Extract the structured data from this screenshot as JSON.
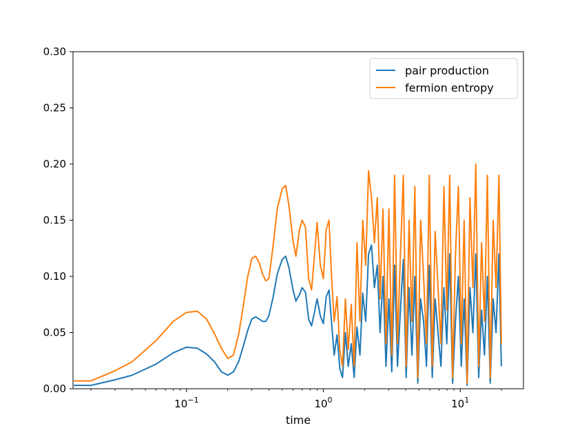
{
  "chart_data": {
    "type": "line",
    "xscale": "log",
    "xlabel": "time",
    "ylabel": "",
    "xlim": [
      0.0148,
      29
    ],
    "ylim": [
      0,
      0.3
    ],
    "x_ticks": [
      {
        "value": 0.1,
        "base": "10",
        "exp": "−1"
      },
      {
        "value": 1,
        "base": "10",
        "exp": "0"
      },
      {
        "value": 10,
        "base": "10",
        "exp": "1"
      }
    ],
    "y_ticks": [
      "0.00",
      "0.05",
      "0.10",
      "0.15",
      "0.20",
      "0.25",
      "0.30"
    ],
    "grid": false,
    "legend": "top-right",
    "series": [
      {
        "name": "pair production",
        "color": "#1f77b4",
        "x": [
          0.015,
          0.02,
          0.03,
          0.04,
          0.06,
          0.08,
          0.1,
          0.12,
          0.14,
          0.16,
          0.18,
          0.2,
          0.22,
          0.24,
          0.26,
          0.28,
          0.3,
          0.32,
          0.34,
          0.36,
          0.38,
          0.4,
          0.43,
          0.46,
          0.5,
          0.53,
          0.56,
          0.6,
          0.63,
          0.67,
          0.7,
          0.74,
          0.78,
          0.82,
          0.86,
          0.9,
          0.95,
          1.0,
          1.05,
          1.1,
          1.15,
          1.2,
          1.26,
          1.32,
          1.38,
          1.45,
          1.52,
          1.6,
          1.68,
          1.76,
          1.85,
          1.94,
          2.04,
          2.14,
          2.25,
          2.36,
          2.48,
          2.6,
          2.73,
          2.87,
          3.01,
          3.16,
          3.32,
          3.48,
          3.66,
          3.84,
          4.03,
          4.23,
          4.44,
          4.66,
          4.9,
          5.14,
          5.4,
          5.67,
          5.95,
          6.25,
          6.56,
          6.89,
          7.23,
          7.6,
          7.98,
          8.38,
          8.8,
          9.24,
          9.7,
          10.18,
          10.69,
          11.23,
          11.79,
          12.38,
          13.0,
          13.65,
          14.33,
          15.05,
          15.8,
          16.59,
          17.42,
          18.29,
          19.2,
          20.0
        ],
        "y": [
          0.003,
          0.003,
          0.008,
          0.012,
          0.022,
          0.032,
          0.037,
          0.036,
          0.031,
          0.024,
          0.015,
          0.012,
          0.015,
          0.024,
          0.038,
          0.052,
          0.062,
          0.064,
          0.062,
          0.06,
          0.06,
          0.065,
          0.082,
          0.102,
          0.115,
          0.118,
          0.108,
          0.088,
          0.078,
          0.084,
          0.09,
          0.086,
          0.062,
          0.056,
          0.068,
          0.08,
          0.065,
          0.058,
          0.082,
          0.088,
          0.058,
          0.03,
          0.048,
          0.018,
          0.01,
          0.05,
          0.02,
          0.04,
          0.01,
          0.055,
          0.03,
          0.085,
          0.06,
          0.12,
          0.128,
          0.09,
          0.11,
          0.05,
          0.1,
          0.02,
          0.08,
          0.015,
          0.11,
          0.02,
          0.07,
          0.115,
          0.01,
          0.09,
          0.03,
          0.1,
          0.005,
          0.08,
          0.06,
          0.02,
          0.11,
          0.01,
          0.08,
          0.05,
          0.02,
          0.09,
          0.04,
          0.12,
          0.005,
          0.06,
          0.1,
          0.02,
          0.08,
          0.003,
          0.09,
          0.05,
          0.12,
          0.01,
          0.07,
          0.03,
          0.1,
          0.005,
          0.08,
          0.05,
          0.12,
          0.02
        ]
      },
      {
        "name": "fermion entropy",
        "color": "#ff7f0e",
        "x": [
          0.015,
          0.02,
          0.03,
          0.04,
          0.06,
          0.08,
          0.1,
          0.12,
          0.14,
          0.16,
          0.18,
          0.2,
          0.22,
          0.24,
          0.26,
          0.28,
          0.3,
          0.32,
          0.34,
          0.36,
          0.38,
          0.4,
          0.43,
          0.46,
          0.5,
          0.53,
          0.56,
          0.6,
          0.63,
          0.67,
          0.7,
          0.74,
          0.78,
          0.82,
          0.86,
          0.9,
          0.95,
          1.0,
          1.05,
          1.1,
          1.15,
          1.2,
          1.26,
          1.32,
          1.38,
          1.45,
          1.52,
          1.6,
          1.68,
          1.76,
          1.85,
          1.94,
          2.04,
          2.14,
          2.25,
          2.36,
          2.48,
          2.6,
          2.73,
          2.87,
          3.01,
          3.16,
          3.32,
          3.48,
          3.66,
          3.84,
          4.03,
          4.23,
          4.44,
          4.66,
          4.9,
          5.14,
          5.4,
          5.67,
          5.95,
          6.25,
          6.56,
          6.89,
          7.23,
          7.6,
          7.98,
          8.38,
          8.8,
          9.24,
          9.7,
          10.18,
          10.69,
          11.23,
          11.79,
          12.38,
          13.0,
          13.65,
          14.33,
          15.05,
          15.8,
          16.59,
          17.42,
          18.29,
          19.2,
          20.0
        ],
        "y": [
          0.007,
          0.007,
          0.016,
          0.024,
          0.043,
          0.06,
          0.068,
          0.069,
          0.062,
          0.049,
          0.036,
          0.027,
          0.03,
          0.048,
          0.074,
          0.1,
          0.116,
          0.118,
          0.112,
          0.102,
          0.096,
          0.098,
          0.128,
          0.16,
          0.178,
          0.181,
          0.163,
          0.132,
          0.118,
          0.142,
          0.15,
          0.144,
          0.098,
          0.088,
          0.118,
          0.148,
          0.11,
          0.098,
          0.142,
          0.15,
          0.098,
          0.06,
          0.082,
          0.034,
          0.02,
          0.08,
          0.035,
          0.075,
          0.02,
          0.13,
          0.06,
          0.15,
          0.11,
          0.194,
          0.17,
          0.13,
          0.17,
          0.08,
          0.16,
          0.04,
          0.16,
          0.03,
          0.19,
          0.04,
          0.12,
          0.19,
          0.02,
          0.15,
          0.06,
          0.18,
          0.01,
          0.15,
          0.1,
          0.04,
          0.19,
          0.02,
          0.14,
          0.09,
          0.04,
          0.18,
          0.07,
          0.19,
          0.01,
          0.12,
          0.18,
          0.04,
          0.15,
          0.005,
          0.17,
          0.09,
          0.2,
          0.02,
          0.13,
          0.06,
          0.19,
          0.01,
          0.15,
          0.09,
          0.19,
          0.04
        ]
      }
    ]
  }
}
